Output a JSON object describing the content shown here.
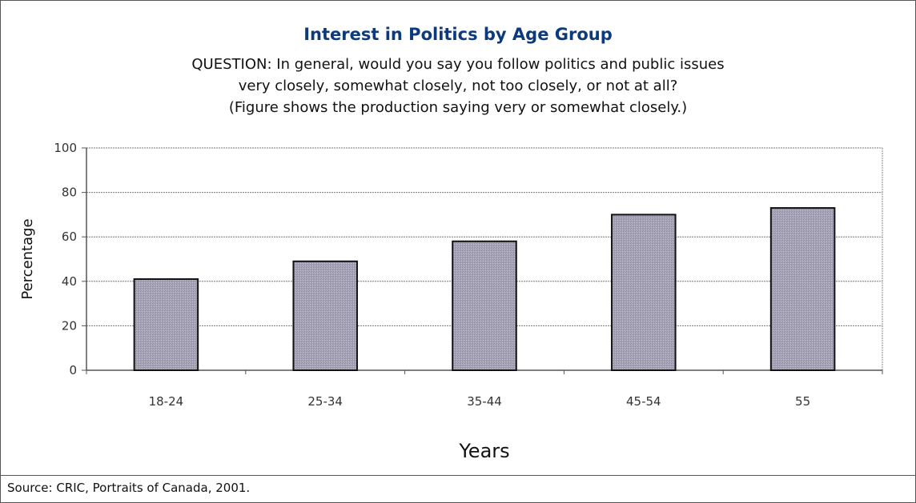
{
  "chart_data": {
    "type": "bar",
    "title": "Interest in Politics by Age Group",
    "subtitle_lines": [
      "QUESTION: In general, would you say you follow politics and public issues",
      "very closely, somewhat closely, not too closely, or not at all?",
      "(Figure shows the production saying very or somewhat closely.)"
    ],
    "categories": [
      "18-24",
      "25-34",
      "35-44",
      "45-54",
      "55"
    ],
    "values": [
      41,
      49,
      58,
      70,
      73
    ],
    "xlabel": "Years",
    "ylabel": "Percentage",
    "ylim": [
      0,
      100
    ],
    "yticks": [
      "0",
      "20",
      "40",
      "60",
      "80",
      "100"
    ],
    "grid": true,
    "legend": "none",
    "bar_color": "#a49fb3",
    "bar_edge_color": "#111111"
  },
  "source": "Source: CRIC, Portraits of Canada, 2001."
}
